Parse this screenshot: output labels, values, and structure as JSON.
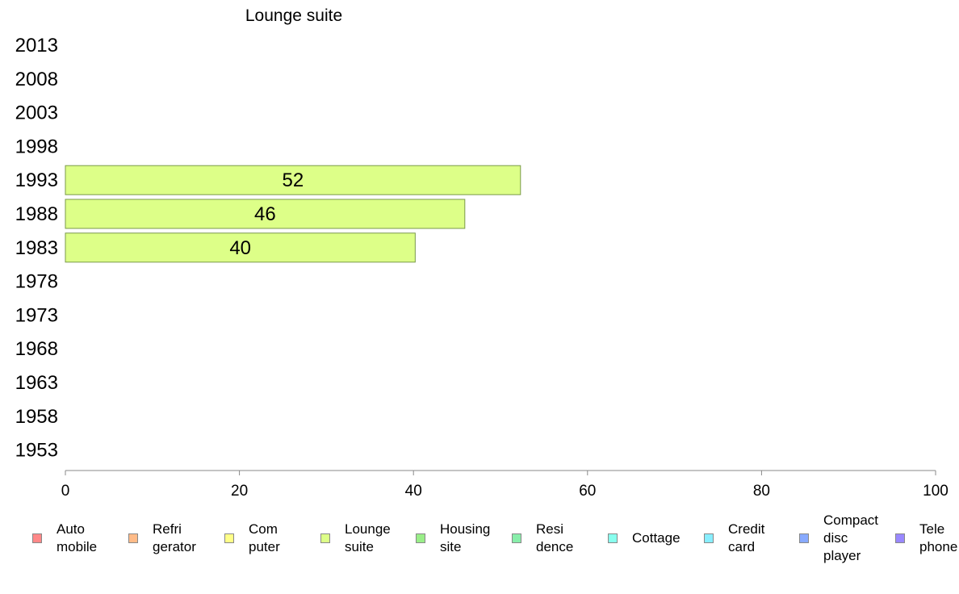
{
  "chart_data": {
    "type": "bar",
    "orientation": "horizontal",
    "title": "Lounge suite",
    "categories": [
      "2013",
      "2008",
      "2003",
      "1998",
      "1993",
      "1988",
      "1983",
      "1978",
      "1973",
      "1968",
      "1963",
      "1958",
      "1953"
    ],
    "series": [
      {
        "name": "Lounge suite",
        "color": "#ddff88",
        "values": [
          null,
          null,
          null,
          null,
          52.3,
          45.9,
          40.2,
          null,
          null,
          null,
          null,
          null,
          null
        ],
        "labels": [
          "",
          "",
          "",
          "",
          "52",
          "46",
          "40",
          "",
          "",
          "",
          "",
          "",
          ""
        ]
      }
    ],
    "xlim": [
      0,
      100
    ],
    "xticks": [
      "0",
      "20",
      "40",
      "60",
      "80",
      "100"
    ],
    "xlabel": "",
    "ylabel": "",
    "grid": false,
    "legend_position": "bottom"
  },
  "legend": {
    "items": [
      {
        "label": "Auto\nmobile",
        "color": "#ff8888"
      },
      {
        "label": "Refri\ngerator",
        "color": "#ffbb88"
      },
      {
        "label": "Com\nputer",
        "color": "#ffff88"
      },
      {
        "label": "Lounge\nsuite",
        "color": "#ddff88"
      },
      {
        "label": "Housing\nsite",
        "color": "#99ee88"
      },
      {
        "label": "Resi\ndence",
        "color": "#88eeaa"
      },
      {
        "label": "Cottage",
        "color": "#88ffee"
      },
      {
        "label": "Credit\ncard",
        "color": "#88eeff"
      },
      {
        "label": "Compact\ndisc\nplayer",
        "color": "#88aaff"
      },
      {
        "label": "Tele\nphone",
        "color": "#9988ff"
      }
    ]
  }
}
